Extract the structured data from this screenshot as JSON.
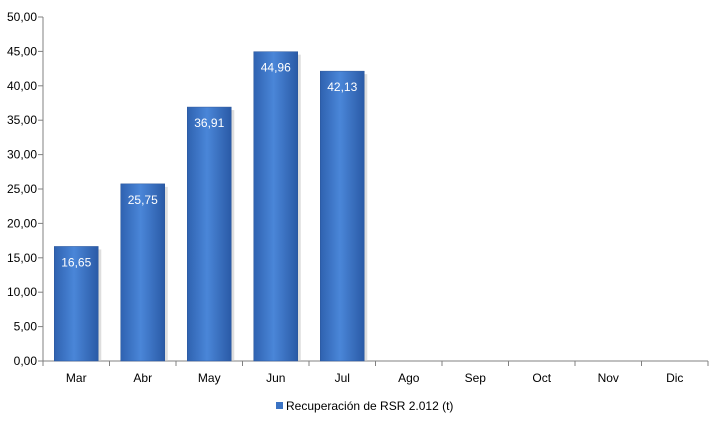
{
  "chart_data": {
    "type": "bar",
    "categories": [
      "Mar",
      "Abr",
      "May",
      "Jun",
      "Jul",
      "Ago",
      "Sep",
      "Oct",
      "Nov",
      "Dic"
    ],
    "series": [
      {
        "name": "Recuperación de RSR 2.012 (t)",
        "values": [
          16.65,
          25.75,
          36.91,
          44.96,
          42.13,
          null,
          null,
          null,
          null,
          null
        ],
        "data_labels": [
          "16,65",
          "25,75",
          "36,91",
          "44,96",
          "42,13",
          "",
          "",
          "",
          "",
          ""
        ],
        "color": "#3a73c4"
      }
    ],
    "ylim": [
      0,
      50
    ],
    "yticks": [
      0,
      5,
      10,
      15,
      20,
      25,
      30,
      35,
      40,
      45,
      50
    ],
    "ytick_labels": [
      "0,00",
      "5,00",
      "10,00",
      "15,00",
      "20,00",
      "25,00",
      "30,00",
      "35,00",
      "40,00",
      "45,00",
      "50,00"
    ],
    "grid": false,
    "legend_position": "bottom",
    "title": "",
    "xlabel": "",
    "ylabel": ""
  }
}
